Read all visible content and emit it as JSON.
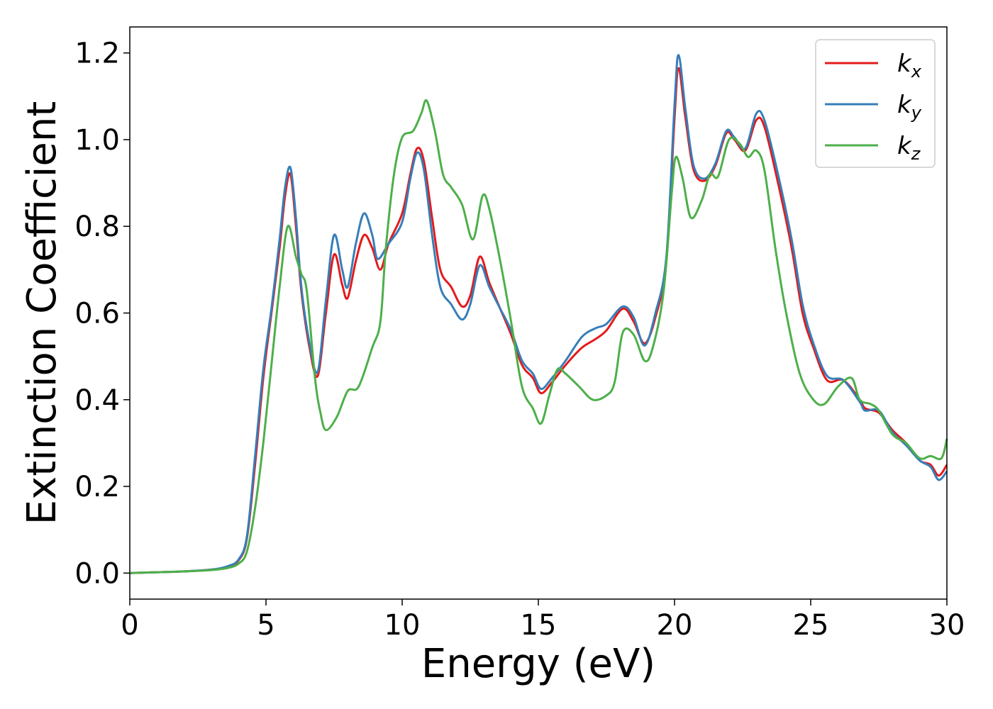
{
  "chart_data": {
    "type": "line",
    "title": "",
    "xlabel": "Energy (eV)",
    "ylabel": "Extinction Coefficient",
    "xlim": [
      0,
      30
    ],
    "ylim": [
      -0.06,
      1.26
    ],
    "x_ticks": [
      0,
      5,
      10,
      15,
      20,
      25,
      30
    ],
    "x_tick_labels": [
      "0",
      "5",
      "10",
      "15",
      "20",
      "25",
      "30"
    ],
    "y_ticks": [
      0.0,
      0.2,
      0.4,
      0.6,
      0.8,
      1.0,
      1.2
    ],
    "y_tick_labels": [
      "0.0",
      "0.2",
      "0.4",
      "0.6",
      "0.8",
      "1.0",
      "1.2"
    ],
    "grid": false,
    "legend_position": "top-right",
    "series": [
      {
        "name": "k",
        "subscript": "x",
        "color": "#e41a1c",
        "points": [
          [
            0,
            0
          ],
          [
            1,
            0.002
          ],
          [
            2,
            0.004
          ],
          [
            3,
            0.008
          ],
          [
            3.6,
            0.015
          ],
          [
            4,
            0.03
          ],
          [
            4.3,
            0.08
          ],
          [
            4.6,
            0.25
          ],
          [
            4.9,
            0.45
          ],
          [
            5.2,
            0.6
          ],
          [
            5.5,
            0.75
          ],
          [
            5.7,
            0.87
          ],
          [
            5.9,
            0.92
          ],
          [
            6.1,
            0.8
          ],
          [
            6.3,
            0.65
          ],
          [
            6.6,
            0.52
          ],
          [
            6.9,
            0.455
          ],
          [
            7.2,
            0.6
          ],
          [
            7.5,
            0.735
          ],
          [
            7.8,
            0.665
          ],
          [
            8.0,
            0.635
          ],
          [
            8.3,
            0.72
          ],
          [
            8.6,
            0.78
          ],
          [
            8.9,
            0.75
          ],
          [
            9.2,
            0.7
          ],
          [
            9.5,
            0.76
          ],
          [
            10.0,
            0.83
          ],
          [
            10.3,
            0.92
          ],
          [
            10.55,
            0.98
          ],
          [
            10.8,
            0.95
          ],
          [
            11.1,
            0.82
          ],
          [
            11.4,
            0.7
          ],
          [
            11.8,
            0.66
          ],
          [
            12.2,
            0.615
          ],
          [
            12.5,
            0.64
          ],
          [
            12.85,
            0.73
          ],
          [
            13.2,
            0.67
          ],
          [
            13.6,
            0.61
          ],
          [
            14.0,
            0.55
          ],
          [
            14.4,
            0.48
          ],
          [
            14.8,
            0.45
          ],
          [
            15.1,
            0.415
          ],
          [
            15.5,
            0.44
          ],
          [
            16.0,
            0.48
          ],
          [
            16.6,
            0.52
          ],
          [
            17.1,
            0.54
          ],
          [
            17.5,
            0.56
          ],
          [
            18.1,
            0.61
          ],
          [
            18.5,
            0.58
          ],
          [
            18.9,
            0.53
          ],
          [
            19.3,
            0.59
          ],
          [
            19.7,
            0.72
          ],
          [
            20.0,
            1.05
          ],
          [
            20.15,
            1.165
          ],
          [
            20.4,
            1.05
          ],
          [
            20.7,
            0.93
          ],
          [
            21.1,
            0.905
          ],
          [
            21.5,
            0.94
          ],
          [
            21.9,
            1.015
          ],
          [
            22.2,
            1.0
          ],
          [
            22.6,
            0.975
          ],
          [
            23.0,
            1.045
          ],
          [
            23.3,
            1.03
          ],
          [
            23.8,
            0.9
          ],
          [
            24.3,
            0.75
          ],
          [
            24.7,
            0.6
          ],
          [
            25.1,
            0.52
          ],
          [
            25.6,
            0.445
          ],
          [
            26.2,
            0.445
          ],
          [
            26.8,
            0.4
          ],
          [
            27.0,
            0.38
          ],
          [
            27.5,
            0.37
          ],
          [
            28.0,
            0.33
          ],
          [
            28.5,
            0.3
          ],
          [
            29.0,
            0.26
          ],
          [
            29.4,
            0.25
          ],
          [
            29.7,
            0.225
          ],
          [
            30.0,
            0.25
          ]
        ]
      },
      {
        "name": "k",
        "subscript": "y",
        "color": "#377eb8",
        "points": [
          [
            0,
            0
          ],
          [
            1,
            0.002
          ],
          [
            2,
            0.004
          ],
          [
            3,
            0.008
          ],
          [
            3.6,
            0.016
          ],
          [
            4,
            0.032
          ],
          [
            4.3,
            0.085
          ],
          [
            4.6,
            0.27
          ],
          [
            4.9,
            0.47
          ],
          [
            5.2,
            0.61
          ],
          [
            5.5,
            0.77
          ],
          [
            5.7,
            0.89
          ],
          [
            5.9,
            0.935
          ],
          [
            6.1,
            0.82
          ],
          [
            6.3,
            0.66
          ],
          [
            6.6,
            0.53
          ],
          [
            6.9,
            0.465
          ],
          [
            7.2,
            0.63
          ],
          [
            7.5,
            0.78
          ],
          [
            7.8,
            0.7
          ],
          [
            8.0,
            0.66
          ],
          [
            8.3,
            0.76
          ],
          [
            8.6,
            0.83
          ],
          [
            8.9,
            0.78
          ],
          [
            9.1,
            0.725
          ],
          [
            9.5,
            0.76
          ],
          [
            10.0,
            0.81
          ],
          [
            10.3,
            0.91
          ],
          [
            10.55,
            0.97
          ],
          [
            10.8,
            0.93
          ],
          [
            11.1,
            0.78
          ],
          [
            11.4,
            0.66
          ],
          [
            11.8,
            0.62
          ],
          [
            12.2,
            0.585
          ],
          [
            12.5,
            0.62
          ],
          [
            12.85,
            0.71
          ],
          [
            13.2,
            0.66
          ],
          [
            13.6,
            0.61
          ],
          [
            14.0,
            0.56
          ],
          [
            14.4,
            0.49
          ],
          [
            14.8,
            0.46
          ],
          [
            15.1,
            0.425
          ],
          [
            15.5,
            0.45
          ],
          [
            16.0,
            0.49
          ],
          [
            16.6,
            0.545
          ],
          [
            17.1,
            0.565
          ],
          [
            17.5,
            0.575
          ],
          [
            18.1,
            0.615
          ],
          [
            18.5,
            0.59
          ],
          [
            18.9,
            0.525
          ],
          [
            19.3,
            0.6
          ],
          [
            19.7,
            0.73
          ],
          [
            20.0,
            1.08
          ],
          [
            20.15,
            1.195
          ],
          [
            20.4,
            1.07
          ],
          [
            20.7,
            0.94
          ],
          [
            21.1,
            0.91
          ],
          [
            21.5,
            0.945
          ],
          [
            21.9,
            1.02
          ],
          [
            22.2,
            1.005
          ],
          [
            22.6,
            0.98
          ],
          [
            23.0,
            1.06
          ],
          [
            23.3,
            1.045
          ],
          [
            23.8,
            0.92
          ],
          [
            24.3,
            0.77
          ],
          [
            24.7,
            0.62
          ],
          [
            25.1,
            0.53
          ],
          [
            25.6,
            0.455
          ],
          [
            26.2,
            0.445
          ],
          [
            26.8,
            0.395
          ],
          [
            27.0,
            0.375
          ],
          [
            27.5,
            0.375
          ],
          [
            28.0,
            0.325
          ],
          [
            28.5,
            0.295
          ],
          [
            29.0,
            0.26
          ],
          [
            29.4,
            0.245
          ],
          [
            29.7,
            0.215
          ],
          [
            30.0,
            0.235
          ]
        ]
      },
      {
        "name": "k",
        "subscript": "z",
        "color": "#4daf4a",
        "points": [
          [
            0,
            0
          ],
          [
            1,
            0.002
          ],
          [
            2,
            0.004
          ],
          [
            3,
            0.007
          ],
          [
            3.6,
            0.012
          ],
          [
            4,
            0.022
          ],
          [
            4.3,
            0.05
          ],
          [
            4.6,
            0.15
          ],
          [
            4.9,
            0.3
          ],
          [
            5.2,
            0.48
          ],
          [
            5.5,
            0.66
          ],
          [
            5.8,
            0.8
          ],
          [
            6.1,
            0.73
          ],
          [
            6.3,
            0.69
          ],
          [
            6.5,
            0.65
          ],
          [
            6.8,
            0.45
          ],
          [
            7.0,
            0.37
          ],
          [
            7.2,
            0.33
          ],
          [
            7.6,
            0.36
          ],
          [
            8.0,
            0.42
          ],
          [
            8.4,
            0.43
          ],
          [
            8.9,
            0.52
          ],
          [
            9.2,
            0.58
          ],
          [
            9.4,
            0.75
          ],
          [
            9.7,
            0.92
          ],
          [
            10.0,
            1.005
          ],
          [
            10.4,
            1.02
          ],
          [
            10.7,
            1.06
          ],
          [
            10.9,
            1.09
          ],
          [
            11.2,
            1.02
          ],
          [
            11.5,
            0.92
          ],
          [
            11.8,
            0.89
          ],
          [
            12.2,
            0.85
          ],
          [
            12.6,
            0.77
          ],
          [
            12.95,
            0.87
          ],
          [
            13.2,
            0.84
          ],
          [
            13.6,
            0.72
          ],
          [
            14.0,
            0.58
          ],
          [
            14.4,
            0.43
          ],
          [
            14.8,
            0.38
          ],
          [
            15.1,
            0.345
          ],
          [
            15.4,
            0.41
          ],
          [
            15.7,
            0.47
          ],
          [
            16.0,
            0.46
          ],
          [
            16.5,
            0.43
          ],
          [
            17.0,
            0.4
          ],
          [
            17.5,
            0.41
          ],
          [
            17.8,
            0.44
          ],
          [
            18.1,
            0.555
          ],
          [
            18.5,
            0.55
          ],
          [
            18.9,
            0.49
          ],
          [
            19.2,
            0.52
          ],
          [
            19.6,
            0.65
          ],
          [
            19.9,
            0.88
          ],
          [
            20.05,
            0.96
          ],
          [
            20.3,
            0.91
          ],
          [
            20.6,
            0.82
          ],
          [
            21.0,
            0.86
          ],
          [
            21.3,
            0.92
          ],
          [
            21.6,
            0.915
          ],
          [
            22.0,
            1.0
          ],
          [
            22.4,
            0.99
          ],
          [
            22.7,
            0.96
          ],
          [
            23.0,
            0.975
          ],
          [
            23.3,
            0.93
          ],
          [
            23.7,
            0.75
          ],
          [
            24.1,
            0.6
          ],
          [
            24.6,
            0.46
          ],
          [
            25.1,
            0.4
          ],
          [
            25.5,
            0.39
          ],
          [
            26.0,
            0.43
          ],
          [
            26.5,
            0.45
          ],
          [
            26.8,
            0.4
          ],
          [
            27.2,
            0.39
          ],
          [
            27.5,
            0.375
          ],
          [
            28.0,
            0.32
          ],
          [
            28.5,
            0.3
          ],
          [
            29.0,
            0.265
          ],
          [
            29.4,
            0.27
          ],
          [
            29.8,
            0.265
          ],
          [
            30.0,
            0.31
          ]
        ]
      }
    ]
  }
}
